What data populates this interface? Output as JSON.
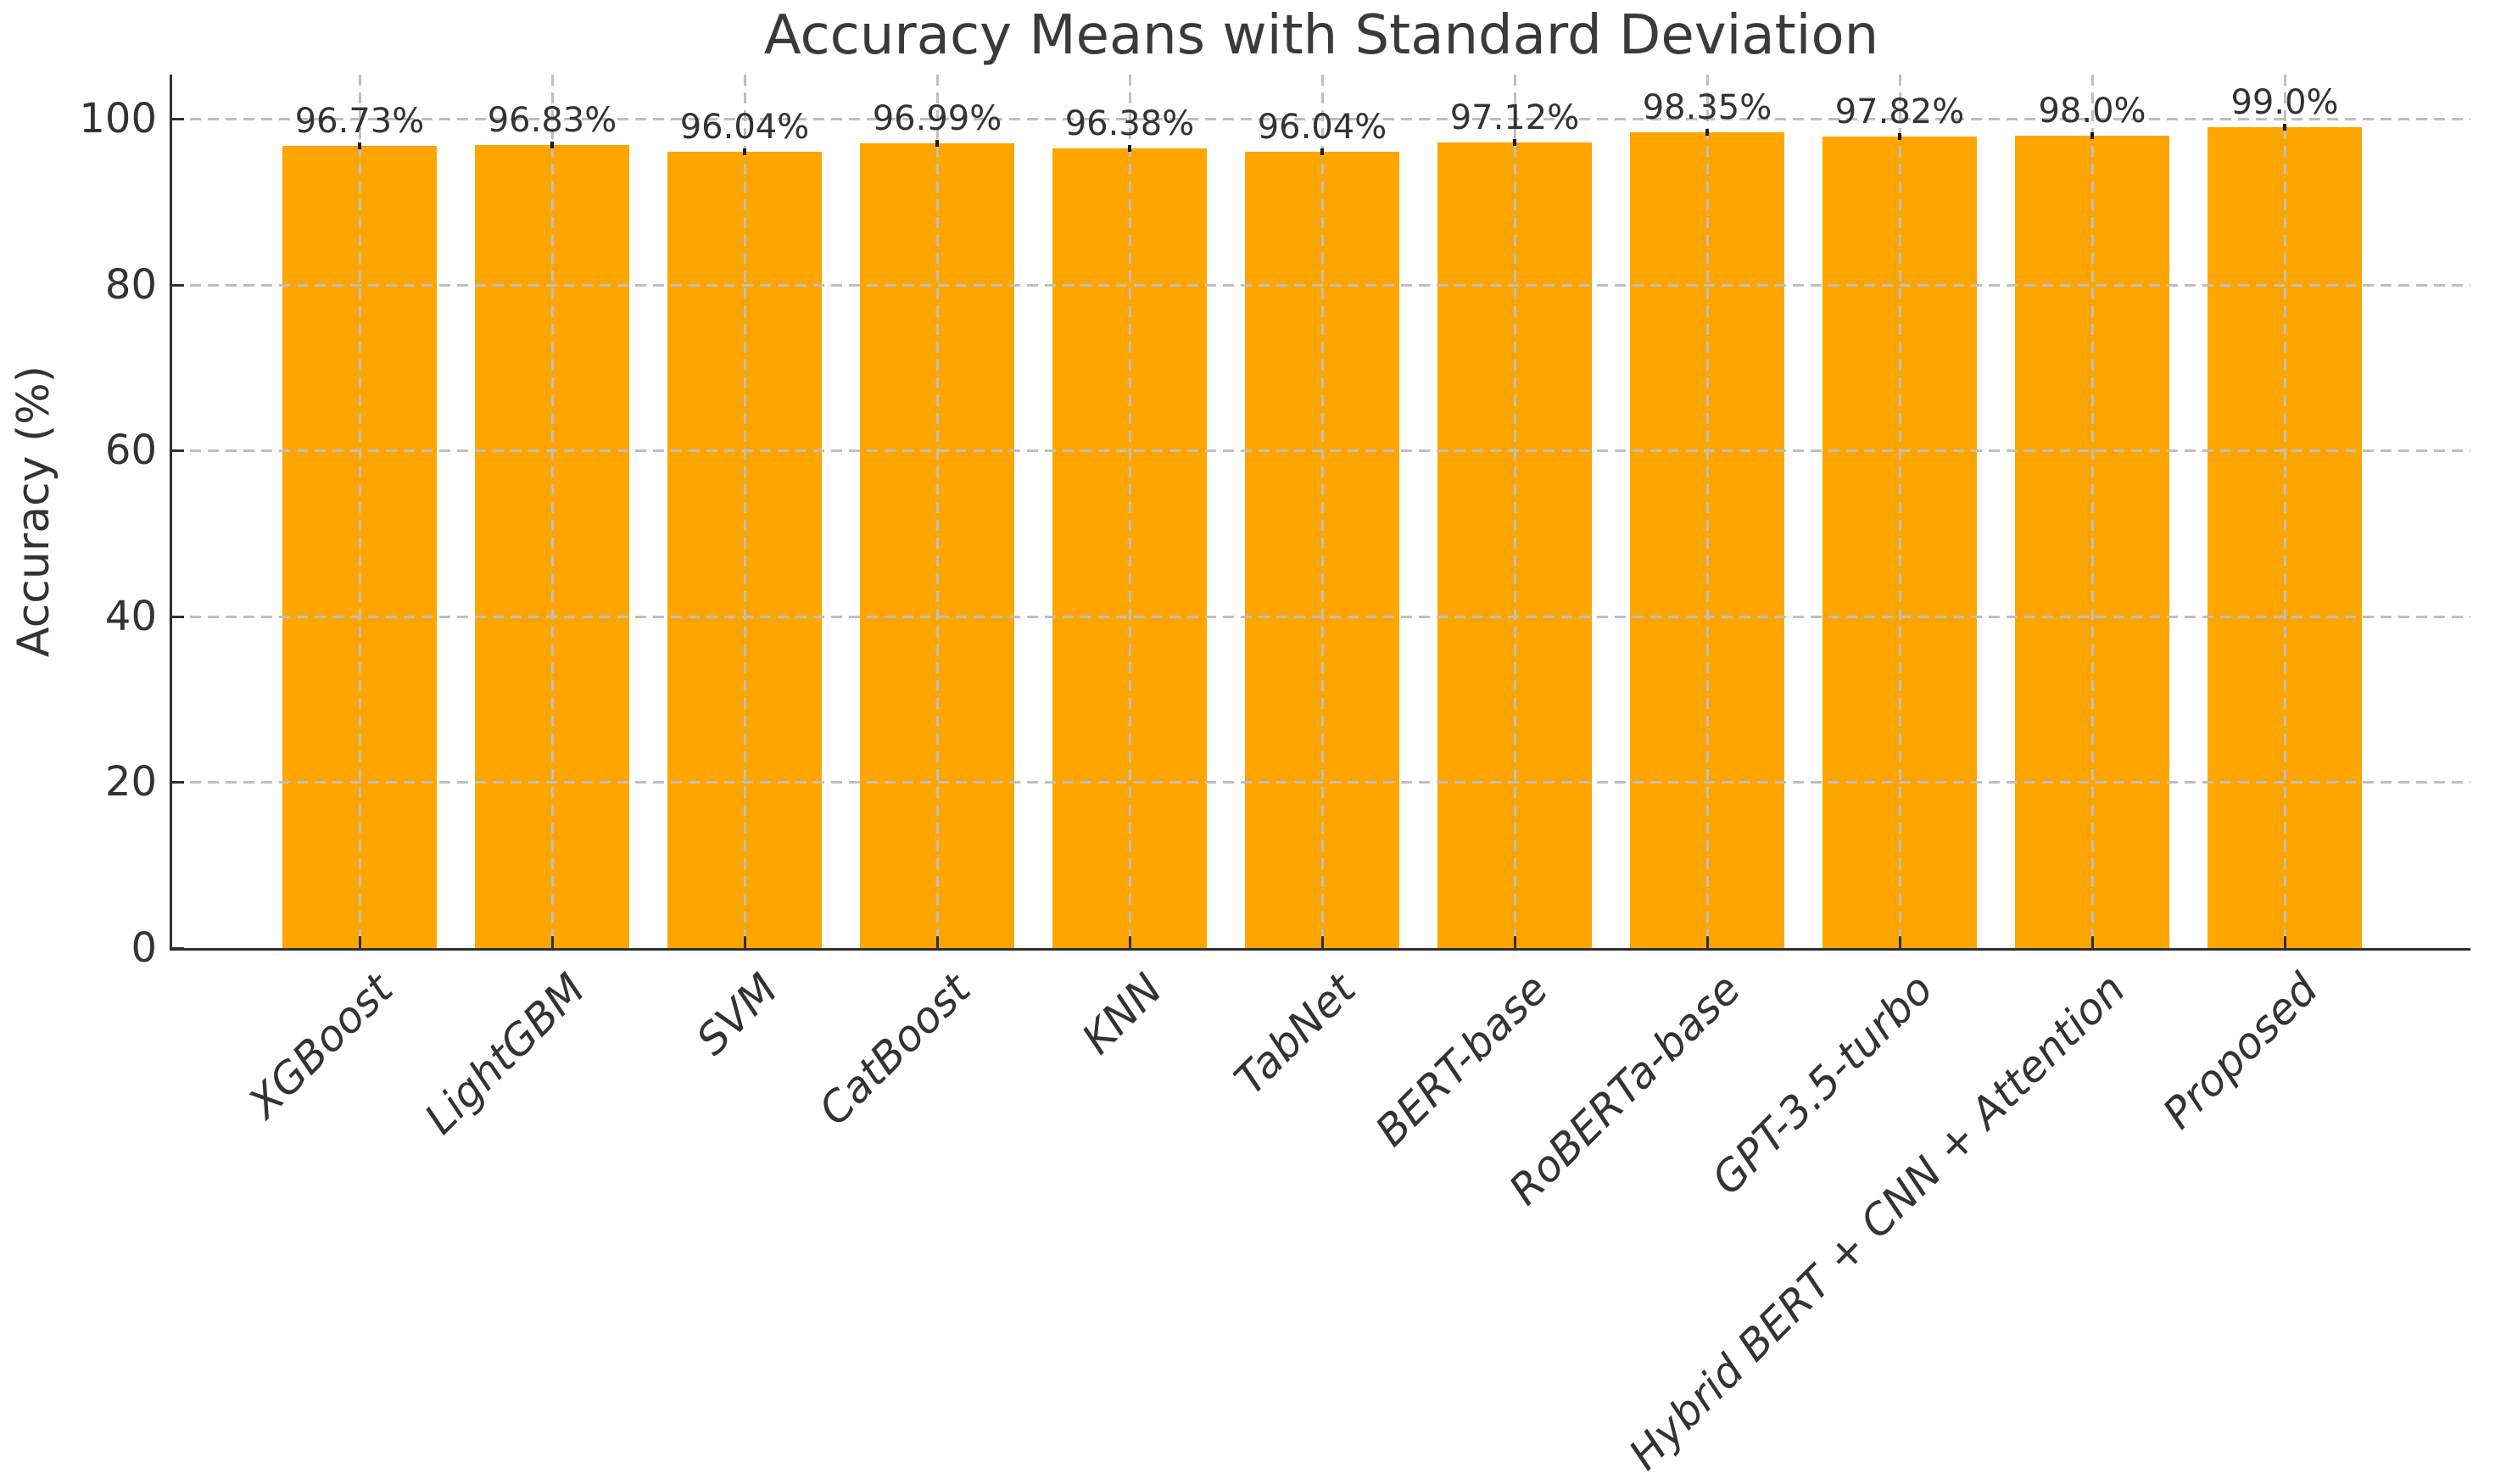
{
  "title": "Accuracy Means with Standard Deviation",
  "chart_data": {
    "type": "bar",
    "title": "Accuracy Means with Standard Deviation",
    "xlabel": "",
    "ylabel": "Accuracy (%)",
    "categories": [
      "XGBoost",
      "LightGBM",
      "SVM",
      "CatBoost",
      "KNN",
      "TabNet",
      "BERT-base",
      "RoBERTa-base",
      "GPT-3.5-turbo",
      "Hybrid BERT + CNN + Attention",
      "Proposed"
    ],
    "values": [
      96.73,
      96.83,
      96.04,
      96.99,
      96.38,
      96.04,
      97.12,
      98.35,
      97.82,
      98.0,
      99.0
    ],
    "value_labels": [
      "96.73%",
      "96.83%",
      "96.04%",
      "96.99%",
      "96.38%",
      "96.04%",
      "97.12%",
      "98.35%",
      "97.82%",
      "98.0%",
      "99.0%"
    ],
    "error_bars": true,
    "std_visual_pct": 0.35,
    "yticks": [
      0,
      20,
      40,
      60,
      80,
      100
    ],
    "ylim": [
      0,
      105.3
    ],
    "grid": "dashed-horizontal-and-vertical",
    "legend": "none",
    "bar_color": "#FFA500",
    "grid_color": "#bfbfbf",
    "axis_color": "#2f2f2f",
    "text_color": "#333333",
    "error_bar_color": "#1a1a1a",
    "x_tick_style": "italic, rotated 45deg, right-anchored"
  }
}
